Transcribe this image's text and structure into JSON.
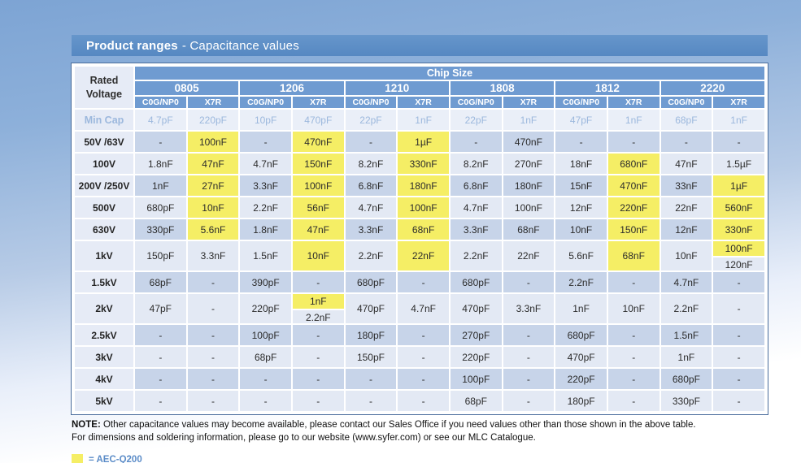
{
  "colors": {
    "accent_blue": "#6f9bd1",
    "row_light": "#e3e9f4",
    "row_dark": "#c7d4e9",
    "label_bg": "#e6ebf6",
    "mincap_bg": "#eaeff8",
    "mincap_text": "#9cb8dd",
    "aec_yellow": "#f5ee65",
    "legend_text": "#5b8cc8"
  },
  "title": {
    "bold": "Product ranges",
    "rest": "- Capacitance values"
  },
  "table": {
    "corner_label": "Rated Voltage",
    "chip_size_label": "Chip Size",
    "chip_sizes": [
      "0805",
      "1206",
      "1210",
      "1808",
      "1812",
      "2220"
    ],
    "dielectrics": [
      "C0G/NP0",
      "X7R"
    ],
    "min_cap": {
      "label": "Min Cap",
      "values": [
        "4.7pF",
        "220pF",
        "10pF",
        "470pF",
        "22pF",
        "1nF",
        "22pF",
        "1nF",
        "47pF",
        "1nF",
        "68pF",
        "1nF"
      ]
    },
    "rows": [
      {
        "label": "50V /63V",
        "cells": [
          "-",
          {
            "v": "100nF",
            "aec": true
          },
          "-",
          {
            "v": "470nF",
            "aec": true
          },
          "-",
          {
            "v": "1µF",
            "aec": true
          },
          "-",
          "470nF",
          "-",
          "-",
          "-",
          "-"
        ]
      },
      {
        "label": "100V",
        "cells": [
          "1.8nF",
          {
            "v": "47nF",
            "aec": true
          },
          "4.7nF",
          {
            "v": "150nF",
            "aec": true
          },
          "8.2nF",
          {
            "v": "330nF",
            "aec": true
          },
          "8.2nF",
          "270nF",
          "18nF",
          {
            "v": "680nF",
            "aec": true
          },
          "47nF",
          "1.5µF"
        ]
      },
      {
        "label": "200V /250V",
        "cells": [
          "1nF",
          {
            "v": "27nF",
            "aec": true
          },
          "3.3nF",
          {
            "v": "100nF",
            "aec": true
          },
          "6.8nF",
          {
            "v": "180nF",
            "aec": true
          },
          "6.8nF",
          "180nF",
          "15nF",
          {
            "v": "470nF",
            "aec": true
          },
          "33nF",
          {
            "v": "1µF",
            "aec": true
          }
        ]
      },
      {
        "label": "500V",
        "cells": [
          "680pF",
          {
            "v": "10nF",
            "aec": true
          },
          "2.2nF",
          {
            "v": "56nF",
            "aec": true
          },
          "4.7nF",
          {
            "v": "100nF",
            "aec": true
          },
          "4.7nF",
          "100nF",
          "12nF",
          {
            "v": "220nF",
            "aec": true
          },
          "22nF",
          {
            "v": "560nF",
            "aec": true
          }
        ]
      },
      {
        "label": "630V",
        "cells": [
          "330pF",
          {
            "v": "5.6nF",
            "aec": true
          },
          "1.8nF",
          {
            "v": "47nF",
            "aec": true
          },
          "3.3nF",
          {
            "v": "68nF",
            "aec": true
          },
          "3.3nF",
          "68nF",
          "10nF",
          {
            "v": "150nF",
            "aec": true
          },
          "12nF",
          {
            "v": "330nF",
            "aec": true
          }
        ]
      },
      {
        "label": "1kV",
        "cells": [
          "150pF",
          "3.3nF",
          "1.5nF",
          {
            "v": "10nF",
            "aec": true
          },
          "2.2nF",
          {
            "v": "22nF",
            "aec": true
          },
          "2.2nF",
          "22nF",
          "5.6nF",
          {
            "v": "68nF",
            "aec": true
          },
          "10nF",
          {
            "stack": [
              {
                "v": "100nF",
                "aec": true
              },
              {
                "v": "120nF"
              }
            ]
          }
        ]
      },
      {
        "label": "1.5kV",
        "cells": [
          "68pF",
          "-",
          "390pF",
          "-",
          "680pF",
          "-",
          "680pF",
          "-",
          "2.2nF",
          "-",
          "4.7nF",
          "-"
        ]
      },
      {
        "label": "2kV",
        "cells": [
          "47pF",
          "-",
          "220pF",
          {
            "stack": [
              {
                "v": "1nF",
                "aec": true
              },
              {
                "v": "2.2nF"
              }
            ]
          },
          "470pF",
          "4.7nF",
          "470pF",
          "3.3nF",
          "1nF",
          "10nF",
          "2.2nF",
          "-"
        ]
      },
      {
        "label": "2.5kV",
        "cells": [
          "-",
          "-",
          "100pF",
          "-",
          "180pF",
          "-",
          "270pF",
          "-",
          "680pF",
          "-",
          "1.5nF",
          "-"
        ]
      },
      {
        "label": "3kV",
        "cells": [
          "-",
          "-",
          "68pF",
          "-",
          "150pF",
          "-",
          "220pF",
          "-",
          "470pF",
          "-",
          "1nF",
          "-"
        ]
      },
      {
        "label": "4kV",
        "cells": [
          "-",
          "-",
          "-",
          "-",
          "-",
          "-",
          "100pF",
          "-",
          "220pF",
          "-",
          "680pF",
          "-"
        ]
      },
      {
        "label": "5kV",
        "cells": [
          "-",
          "-",
          "-",
          "-",
          "-",
          "-",
          "68pF",
          "-",
          "180pF",
          "-",
          "330pF",
          "-"
        ]
      }
    ]
  },
  "note": {
    "prefix": "NOTE:",
    "line1": "Other capacitance values may become available, please contact our Sales Office if you need values other than those shown in the above table.",
    "line2": "For dimensions and soldering information, please go to our website (www.syfer.com) or see our MLC Catalogue."
  },
  "legend": {
    "label": "= AEC-Q200"
  }
}
